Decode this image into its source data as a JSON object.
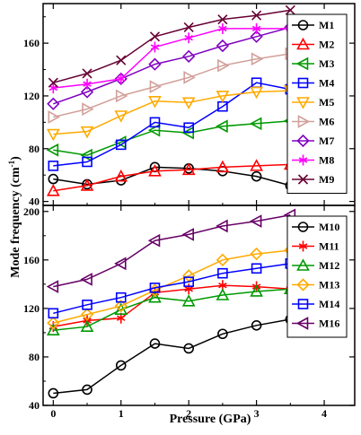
{
  "figure": {
    "xlabel": "Pressure (GPa)",
    "ylabel_main": "Mode frequency (cm",
    "ylabel_sup": "-1",
    "ylabel_close": ")"
  },
  "chart_data": [
    {
      "type": "line",
      "x": [
        0,
        0.5,
        1,
        1.5,
        2,
        2.5,
        3,
        3.5
      ],
      "xlim": [
        -0.15,
        4.45
      ],
      "xticks": [
        0,
        1,
        2,
        3,
        4
      ],
      "ylim": [
        37,
        190
      ],
      "yticks": [
        40,
        80,
        120,
        160
      ],
      "legend_position": "top-right",
      "series": [
        {
          "name": "M1",
          "color": "#000000",
          "marker": "circle",
          "values": [
            57,
            53,
            56,
            66,
            65,
            63,
            59,
            52
          ]
        },
        {
          "name": "M2",
          "color": "#ff0000",
          "marker": "triangle-up",
          "values": [
            48,
            52,
            59,
            63,
            64,
            66,
            67,
            68
          ]
        },
        {
          "name": "M3",
          "color": "#009900",
          "marker": "triangle-left",
          "values": [
            79,
            75,
            85,
            94,
            92,
            97,
            99,
            101
          ]
        },
        {
          "name": "M4",
          "color": "#0000ff",
          "marker": "square",
          "values": [
            67,
            70,
            83,
            100,
            96,
            112,
            130,
            125
          ]
        },
        {
          "name": "M5",
          "color": "#ffaa00",
          "marker": "triangle-down",
          "values": [
            91,
            93,
            105,
            116,
            115,
            120,
            123,
            124
          ]
        },
        {
          "name": "M6",
          "color": "#d2a09a",
          "marker": "triangle-right",
          "values": [
            104,
            110,
            120,
            127,
            134,
            143,
            148,
            152
          ]
        },
        {
          "name": "M7",
          "color": "#8000c0",
          "marker": "diamond",
          "values": [
            114,
            123,
            133,
            144,
            150,
            158,
            165,
            172
          ]
        },
        {
          "name": "M8",
          "color": "#ff00ff",
          "marker": "asterisk",
          "values": [
            126,
            129,
            133,
            157,
            164,
            171,
            171,
            171
          ]
        },
        {
          "name": "M9",
          "color": "#660033",
          "marker": "x",
          "values": [
            130,
            137,
            147,
            165,
            172,
            178,
            181,
            185
          ]
        }
      ]
    },
    {
      "type": "line",
      "x": [
        0,
        0.5,
        1,
        1.5,
        2,
        2.5,
        3,
        3.5
      ],
      "xlim": [
        -0.15,
        4.45
      ],
      "xticks": [
        0,
        1,
        2,
        3,
        4
      ],
      "ylim": [
        40,
        205
      ],
      "yticks": [
        40,
        80,
        120,
        160,
        200
      ],
      "legend_position": "top-right",
      "series": [
        {
          "name": "M10",
          "color": "#000000",
          "marker": "circle",
          "values": [
            50,
            53,
            73,
            91,
            87,
            99,
            106,
            111
          ]
        },
        {
          "name": "M11",
          "color": "#ff0000",
          "marker": "asterisk",
          "values": [
            105,
            110,
            112,
            133,
            136,
            139,
            138,
            136
          ]
        },
        {
          "name": "M12",
          "color": "#009900",
          "marker": "triangle-up",
          "values": [
            102,
            105,
            119,
            129,
            126,
            131,
            134,
            136
          ]
        },
        {
          "name": "M13",
          "color": "#ffaa00",
          "marker": "diamond",
          "values": [
            108,
            115,
            122,
            135,
            147,
            160,
            165,
            168
          ]
        },
        {
          "name": "M14",
          "color": "#0000ff",
          "marker": "square",
          "values": [
            116,
            123,
            129,
            137,
            142,
            149,
            153,
            157
          ]
        },
        {
          "name": "M16",
          "color": "#660066",
          "marker": "triangle-left",
          "values": [
            138,
            144,
            157,
            176,
            181,
            188,
            192,
            197
          ]
        }
      ]
    }
  ]
}
